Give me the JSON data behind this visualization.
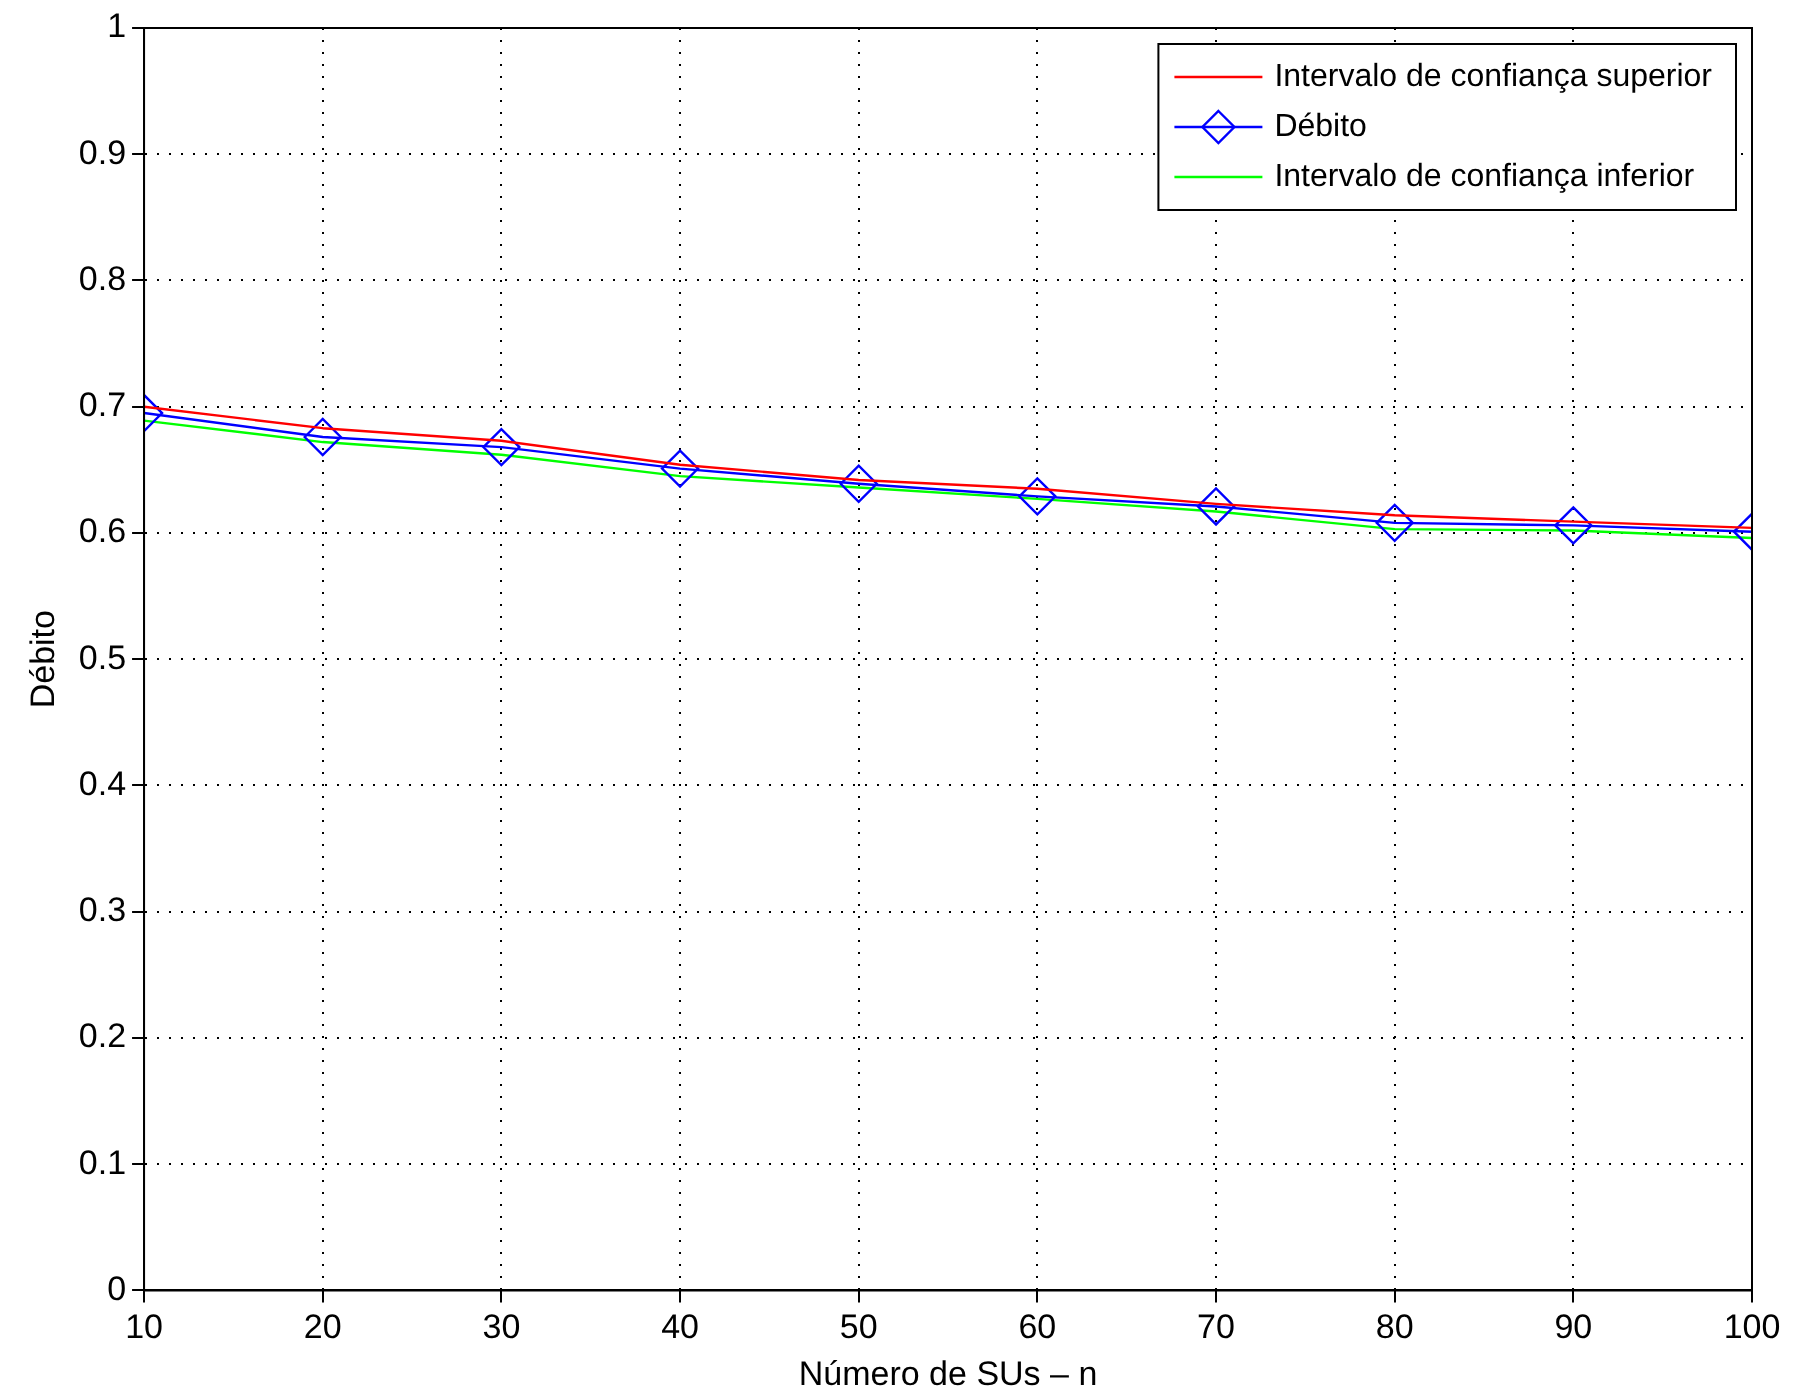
{
  "chart_data": {
    "type": "line",
    "xlabel": "Número de SUs – n",
    "ylabel": "Débito",
    "x": [
      10,
      20,
      30,
      40,
      50,
      60,
      70,
      80,
      90,
      100
    ],
    "series": [
      {
        "name": "Intervalo de confiança superior",
        "color": "#ff0000",
        "marker": "none",
        "values": [
          0.7,
          0.683,
          0.673,
          0.654,
          0.642,
          0.635,
          0.623,
          0.614,
          0.609,
          0.604
        ]
      },
      {
        "name": "Débito",
        "color": "#0000ff",
        "marker": "diamond",
        "values": [
          0.695,
          0.676,
          0.668,
          0.651,
          0.639,
          0.629,
          0.621,
          0.608,
          0.606,
          0.601
        ]
      },
      {
        "name": "Intervalo de confiança inferior",
        "color": "#00ff00",
        "marker": "none",
        "values": [
          0.689,
          0.672,
          0.662,
          0.645,
          0.636,
          0.627,
          0.617,
          0.603,
          0.602,
          0.596
        ]
      }
    ],
    "xlim": [
      10,
      100
    ],
    "xticks": [
      10,
      20,
      30,
      40,
      50,
      60,
      70,
      80,
      90,
      100
    ],
    "ylim": [
      0,
      1
    ],
    "yticks": [
      0,
      0.1,
      0.2,
      0.3,
      0.4,
      0.5,
      0.6,
      0.7,
      0.8,
      0.9,
      1
    ],
    "grid": true,
    "legend": "top right"
  }
}
